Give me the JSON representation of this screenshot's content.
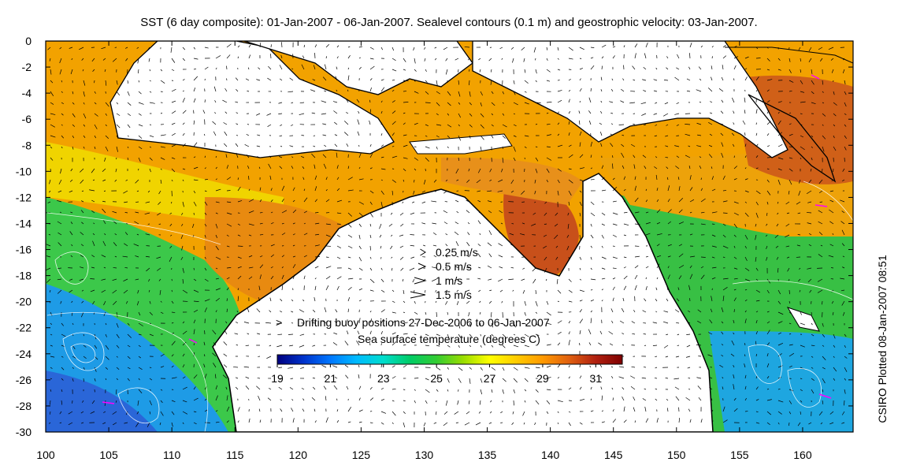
{
  "title": "SST (6 day composite): 01-Jan-2007 - 06-Jan-2007. Sealevel contours (0.1 m) and geostrophic velocity: 03-Jan-2007.",
  "side_note": "CSIRO Plotted 08-Jan-2007 08:51",
  "map": {
    "lon_range": [
      100,
      164
    ],
    "lat_range": [
      -30,
      0
    ],
    "x_ticks": [
      100,
      105,
      110,
      115,
      120,
      125,
      130,
      135,
      140,
      145,
      150,
      155,
      160
    ],
    "y_ticks": [
      0,
      -2,
      -4,
      -6,
      -8,
      -10,
      -12,
      -14,
      -16,
      -18,
      -20,
      -22,
      -24,
      -26,
      -28,
      -30
    ],
    "x_tick_labels": [
      "100",
      "105",
      "110",
      "115",
      "120",
      "125",
      "130",
      "135",
      "140",
      "145",
      "150",
      "155",
      "160"
    ],
    "y_tick_labels": [
      "0",
      "-2",
      "-4",
      "-6",
      "-8",
      "-10",
      "-12",
      "-14",
      "-16",
      "-18",
      "-20",
      "-22",
      "-24",
      "-26",
      "-28",
      "-30"
    ]
  },
  "velocity_legend": [
    {
      "label": "0.25 m/s",
      "speed": 0.25
    },
    {
      "label": "0.5 m/s",
      "speed": 0.5
    },
    {
      "label": "1 m/s",
      "speed": 1
    },
    {
      "label": "1.5 m/s",
      "speed": 1.5
    }
  ],
  "buoy_legend": {
    "symbol": ">",
    "text": "Drifting buoy positions 27-Dec-2006 to 06-Jan-2007",
    "color": "#ff00ff"
  },
  "colorbar": {
    "title": "Sea surface temperature (degrees C)",
    "min": 19,
    "max": 32,
    "tick_values": [
      19,
      21,
      23,
      25,
      27,
      29,
      31
    ],
    "tick_labels": [
      "19",
      "21",
      "23",
      "25",
      "27",
      "29",
      "31"
    ],
    "colors": [
      "#00007f",
      "#0033cc",
      "#0077ff",
      "#00bbff",
      "#00ddcc",
      "#00cc66",
      "#33cc33",
      "#99dd00",
      "#ffff00",
      "#ffcc00",
      "#ff9900",
      "#e06010",
      "#b02010",
      "#7f0000"
    ]
  }
}
